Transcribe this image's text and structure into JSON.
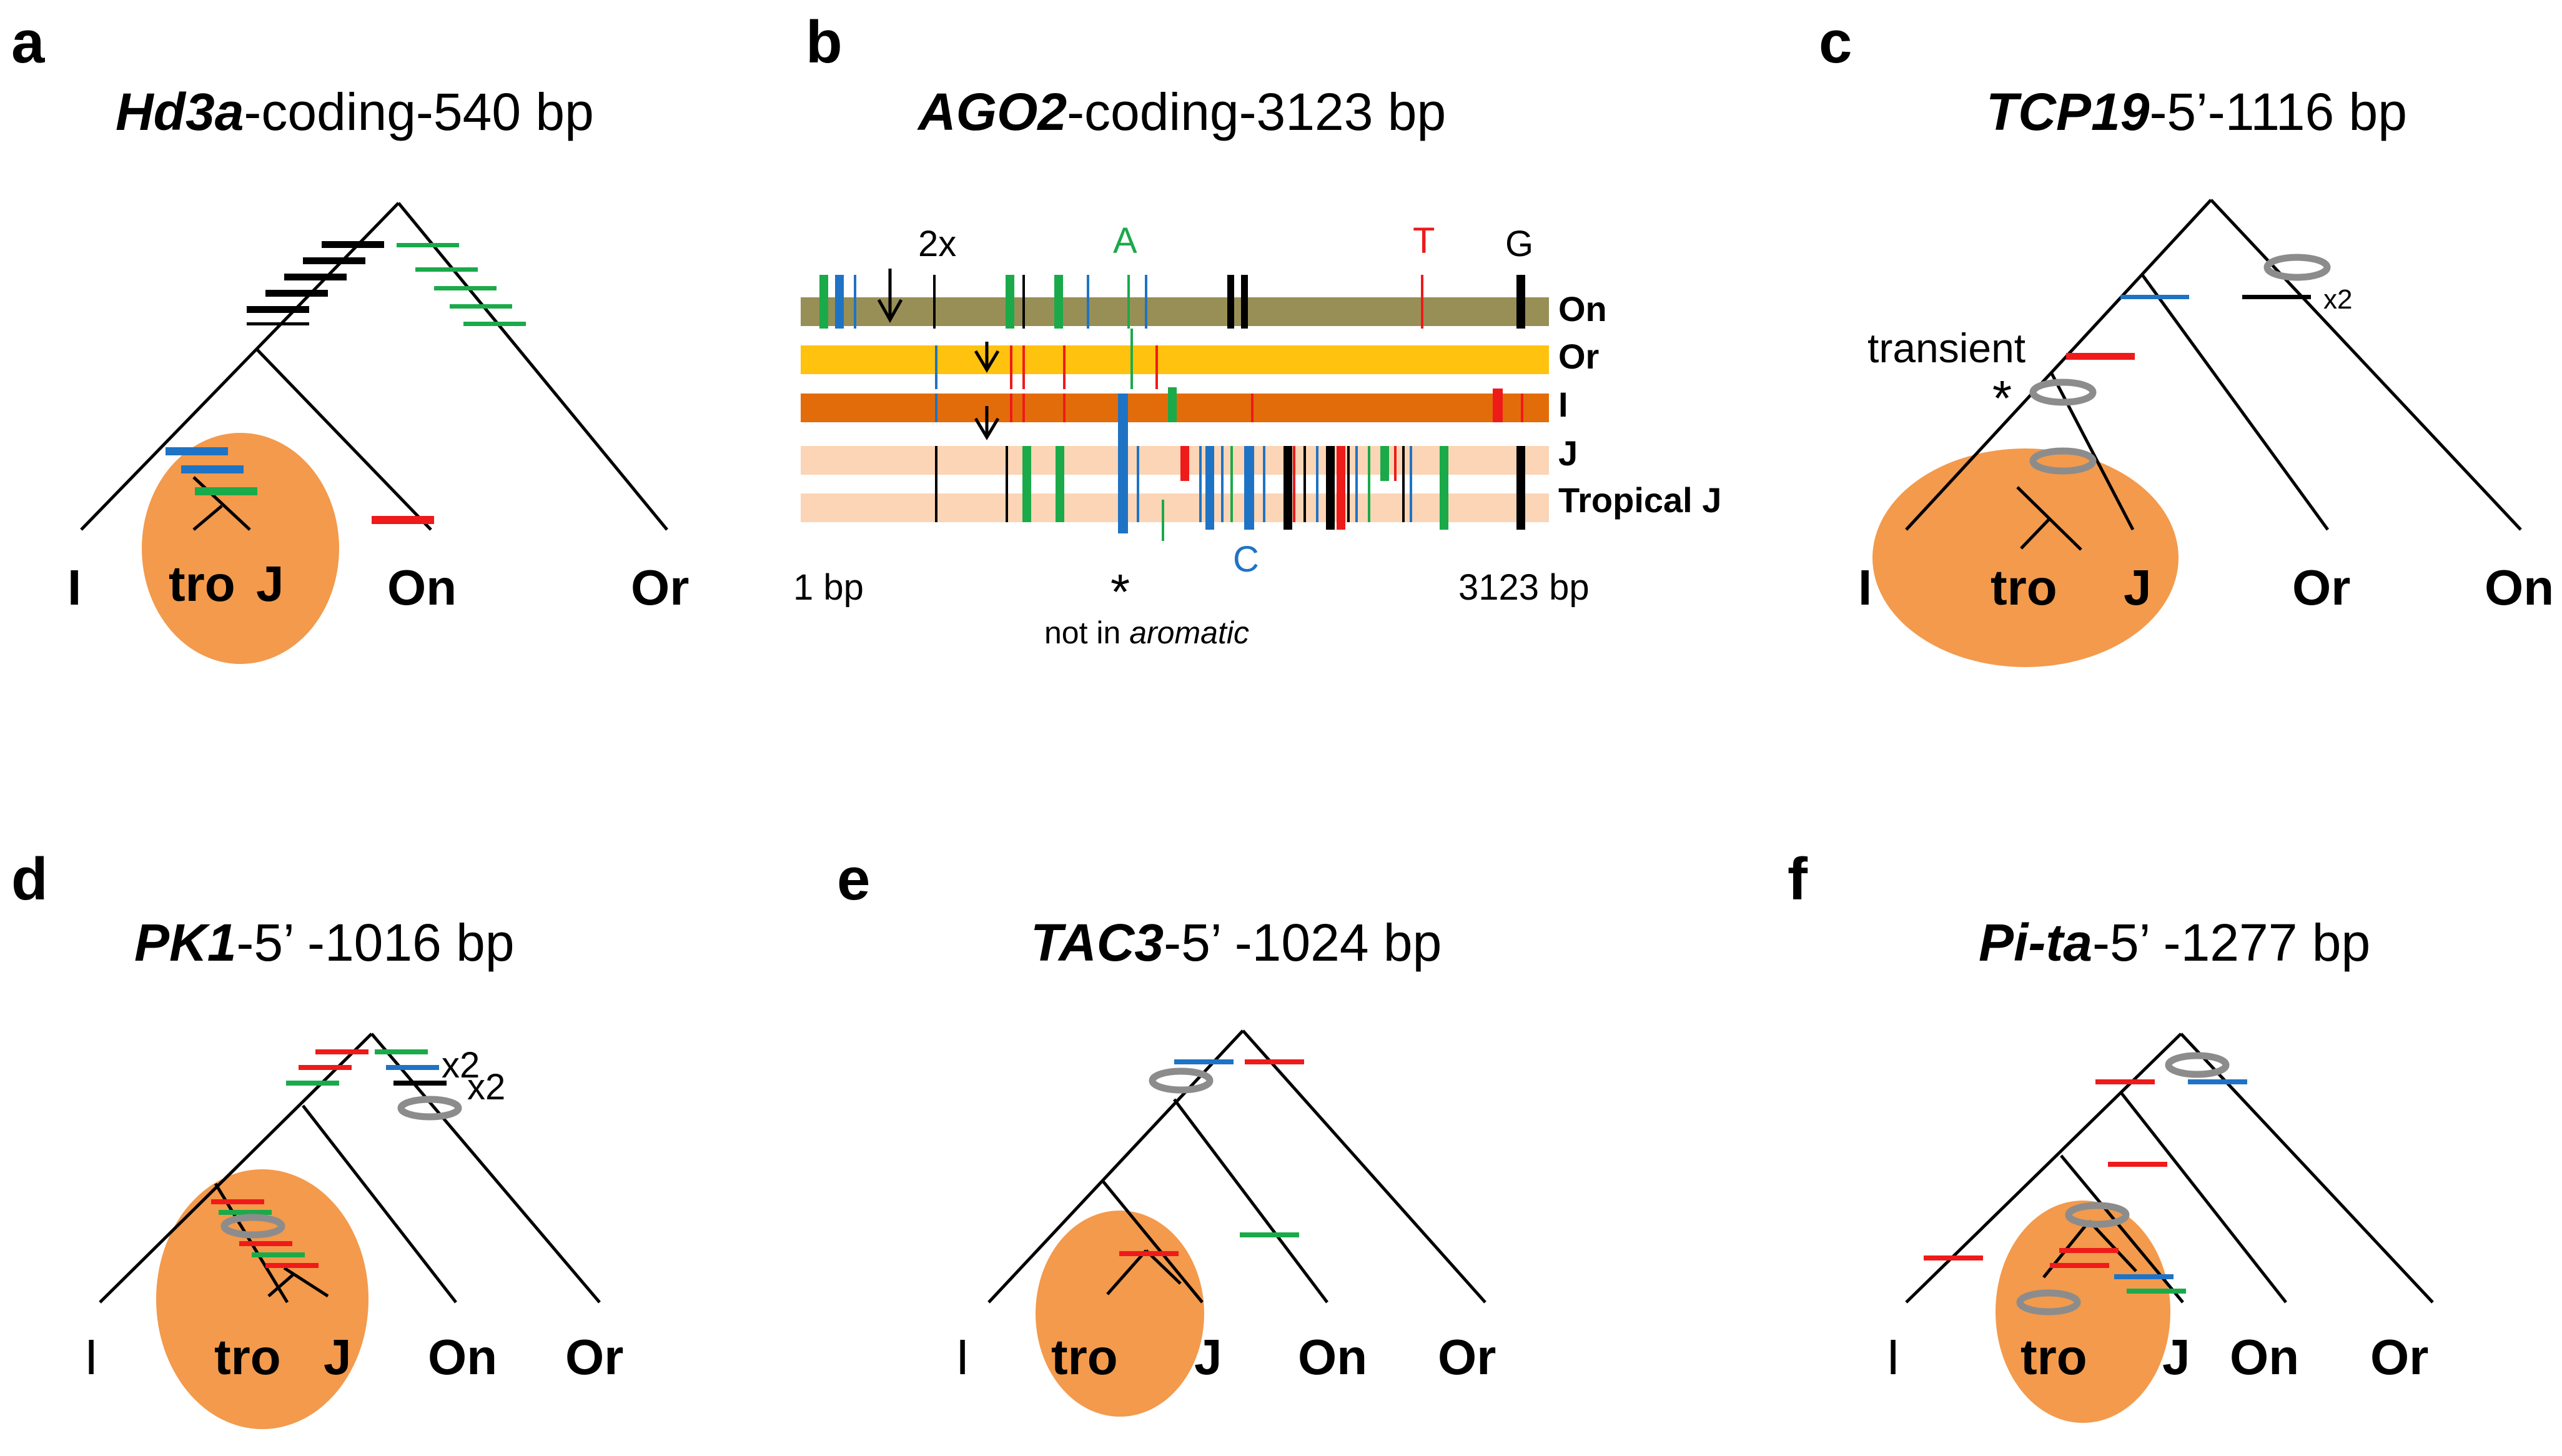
{
  "colors": {
    "ellipse": "#f39a4c",
    "black": "#000000",
    "green": "#1aaa4a",
    "blue": "#1f73c4",
    "red": "#ef1a1a",
    "ring": "#8c8c8c",
    "row_on": "#978f56",
    "row_or": "#ffc20e",
    "row_i": "#e36c0a",
    "row_j": "#fbd5b5"
  },
  "panels": {
    "a": {
      "letter": "a",
      "gene": "Hd3a",
      "suffix": "-coding-540 bp",
      "leaves": {
        "i": "I",
        "tro": "tro",
        "j": "J",
        "on": "On",
        "or": "Or"
      }
    },
    "b": {
      "letter": "b",
      "gene": "AGO2",
      "suffix": "-coding-3123 bp",
      "rows": [
        "On",
        "Or",
        "I",
        "J",
        "Tropical J"
      ],
      "two_x": "2x",
      "allele_a": "A",
      "allele_t": "T",
      "allele_g": "G",
      "allele_c": "C",
      "start": "1 bp",
      "end": "3123 bp",
      "asterisk": "*",
      "note_prefix": "not in ",
      "note_italic": "aromatic"
    },
    "c": {
      "letter": "c",
      "gene": "TCP19",
      "suffix": "-5’-1116 bp",
      "transient": "transient",
      "asterisk": "*",
      "x2": "x2",
      "leaves": {
        "i": "I",
        "tro": "tro",
        "j": "J",
        "or": "Or",
        "on": "On"
      }
    },
    "d": {
      "letter": "d",
      "gene": "PK1",
      "suffix": "-5’ -1016 bp",
      "x2_a": "x2",
      "x2_b": "x2",
      "leaves": {
        "i": "I",
        "tro": "tro",
        "j": "J",
        "on": "On",
        "or": "Or"
      }
    },
    "e": {
      "letter": "e",
      "gene": "TAC3",
      "suffix": "-5’ -1024 bp",
      "leaves": {
        "i": "I",
        "tro": "tro",
        "j": "J",
        "on": "On",
        "or": "Or"
      }
    },
    "f": {
      "letter": "f",
      "gene": "Pi-ta",
      "suffix": "-5’ -1277 bp",
      "leaves": {
        "i": "I",
        "tro": "tro",
        "j": "J",
        "on": "On",
        "or": "Or"
      }
    }
  }
}
